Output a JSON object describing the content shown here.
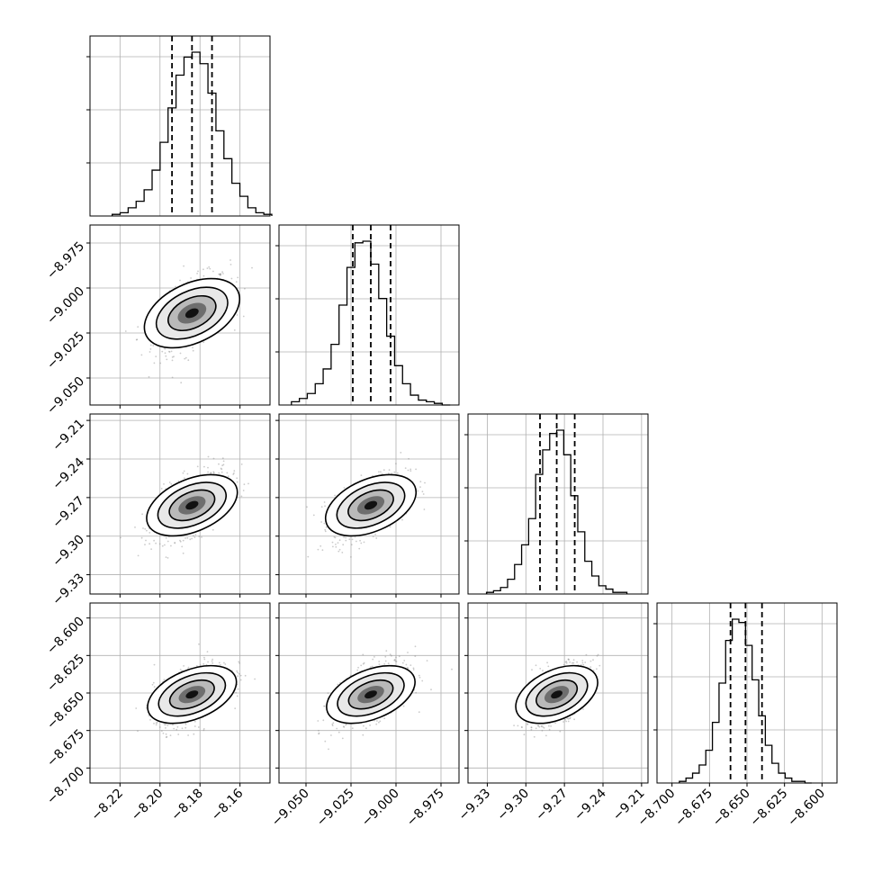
{
  "chart_data": {
    "type": "scatter",
    "kind": "corner-plot",
    "params": [
      {
        "range": [
          -8.235,
          -8.145
        ],
        "ticks": [
          "−8.22",
          "−8.20",
          "−8.18",
          "−8.16"
        ],
        "tick_values": [
          -8.22,
          -8.2,
          -8.18,
          -8.16
        ],
        "quantiles": [
          -8.194,
          -8.184,
          -8.174
        ],
        "mean": -8.184,
        "sd": 0.0095,
        "hist": [
          0.01,
          0.02,
          0.05,
          0.09,
          0.16,
          0.28,
          0.45,
          0.66,
          0.86,
          0.97,
          1.0,
          0.93,
          0.75,
          0.52,
          0.35,
          0.2,
          0.12,
          0.05,
          0.02,
          0.01
        ]
      },
      {
        "range": [
          -9.065,
          -8.965
        ],
        "ticks": [
          "−9.050",
          "−9.025",
          "−9.000",
          "−8.975"
        ],
        "tick_values": [
          -9.05,
          -9.025,
          -9.0,
          -8.975
        ],
        "quantiles": [
          -9.024,
          -9.014,
          -9.003
        ],
        "mean": -9.014,
        "sd": 0.0105,
        "hist": [
          0.02,
          0.04,
          0.07,
          0.13,
          0.22,
          0.37,
          0.61,
          0.84,
          0.99,
          1.0,
          0.86,
          0.65,
          0.42,
          0.24,
          0.13,
          0.06,
          0.03,
          0.02,
          0.01,
          0.0
        ]
      },
      {
        "range": [
          -9.345,
          -9.205
        ],
        "ticks": [
          "−9.33",
          "−9.30",
          "−9.27",
          "−9.24",
          "−9.21"
        ],
        "tick_values": [
          -9.33,
          -9.3,
          -9.27,
          -9.24,
          -9.21
        ],
        "quantiles": [
          -9.289,
          -9.276,
          -9.262
        ],
        "mean": -9.276,
        "sd": 0.013,
        "hist": [
          0.01,
          0.02,
          0.04,
          0.09,
          0.18,
          0.3,
          0.46,
          0.73,
          0.88,
          0.98,
          1.0,
          0.85,
          0.6,
          0.38,
          0.2,
          0.11,
          0.05,
          0.03,
          0.01,
          0.01
        ]
      },
      {
        "range": [
          -8.71,
          -8.59
        ],
        "ticks": [
          "−8.700",
          "−8.675",
          "−8.650",
          "−8.625",
          "−8.600"
        ],
        "tick_values": [
          -8.7,
          -8.675,
          -8.65,
          -8.625,
          -8.6
        ],
        "quantiles": [
          -8.661,
          -8.651,
          -8.64
        ],
        "mean": -8.651,
        "sd": 0.0105,
        "hist": [
          0.01,
          0.03,
          0.06,
          0.11,
          0.2,
          0.37,
          0.61,
          0.87,
          1.0,
          0.98,
          0.84,
          0.63,
          0.41,
          0.23,
          0.12,
          0.06,
          0.03,
          0.01,
          0.01,
          0.0
        ]
      }
    ],
    "correlation": 0.55,
    "grid": true,
    "quantile_levels": [
      0.16,
      0.5,
      0.84
    ]
  }
}
